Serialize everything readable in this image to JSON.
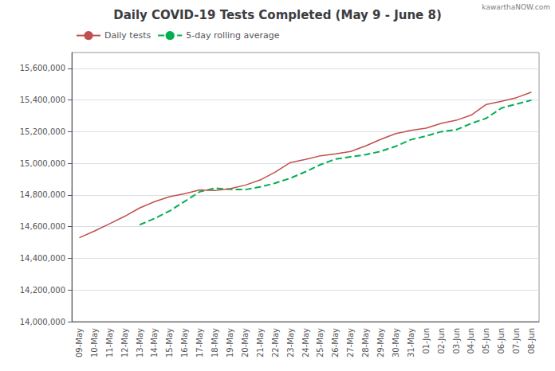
{
  "chart_data": {
    "type": "line",
    "title": "Daily COVID-19 Tests Completed (May 9 - June 8)",
    "annotations": [
      "kawarthaNOW.com"
    ],
    "categories": [
      "09-May",
      "10-May",
      "11-May",
      "12-May",
      "13-May",
      "14-May",
      "15-May",
      "16-May",
      "17-May",
      "18-May",
      "19-May",
      "20-May",
      "21-May",
      "22-May",
      "23-May",
      "24-May",
      "25-May",
      "26-May",
      "27-May",
      "28-May",
      "29-May",
      "30-May",
      "31-May",
      "01-Jun",
      "02-Jun",
      "03-Jun",
      "04-Jun",
      "05-Jun",
      "06-Jun",
      "07-Jun",
      "08-Jun"
    ],
    "series": [
      {
        "name": "Daily tests",
        "color": "#c0504d",
        "line_style": "solid",
        "values": [
          14530000,
          14572000,
          14618000,
          14665000,
          14718000,
          14758000,
          14790000,
          14808000,
          14832000,
          14828000,
          14840000,
          14862000,
          14895000,
          14945000,
          15005000,
          15025000,
          15048000,
          15060000,
          15075000,
          15110000,
          15152000,
          15188000,
          15208000,
          15222000,
          15252000,
          15272000,
          15305000,
          15372000,
          15392000,
          15415000,
          15450000
        ]
      },
      {
        "name": "5-day rolling average",
        "color": "#00b050",
        "line_style": "dashed",
        "values": [
          null,
          null,
          null,
          null,
          14612000,
          14652000,
          14700000,
          14760000,
          14821000,
          14843000,
          14836000,
          14834000,
          14851000,
          14875000,
          14906000,
          14947000,
          14992000,
          15027000,
          15041000,
          15055000,
          15076000,
          15108000,
          15150000,
          15172000,
          15200000,
          15212000,
          15252000,
          15285000,
          15349000,
          15375000,
          15399000
        ]
      }
    ],
    "ylim": [
      14000000,
      15700000
    ],
    "yticks": [
      {
        "value": 14000000,
        "label": "14,000,000"
      },
      {
        "value": 14200000,
        "label": "14,200,000"
      },
      {
        "value": 14400000,
        "label": "14,400,000"
      },
      {
        "value": 14600000,
        "label": "14,600,000"
      },
      {
        "value": 14800000,
        "label": "14,800,000"
      },
      {
        "value": 15000000,
        "label": "15,000,000"
      },
      {
        "value": 15200000,
        "label": "15,200,000"
      },
      {
        "value": 15400000,
        "label": "15,400,000"
      },
      {
        "value": 15600000,
        "label": "15,600,000"
      }
    ],
    "grid": true,
    "legend": "upper left"
  }
}
